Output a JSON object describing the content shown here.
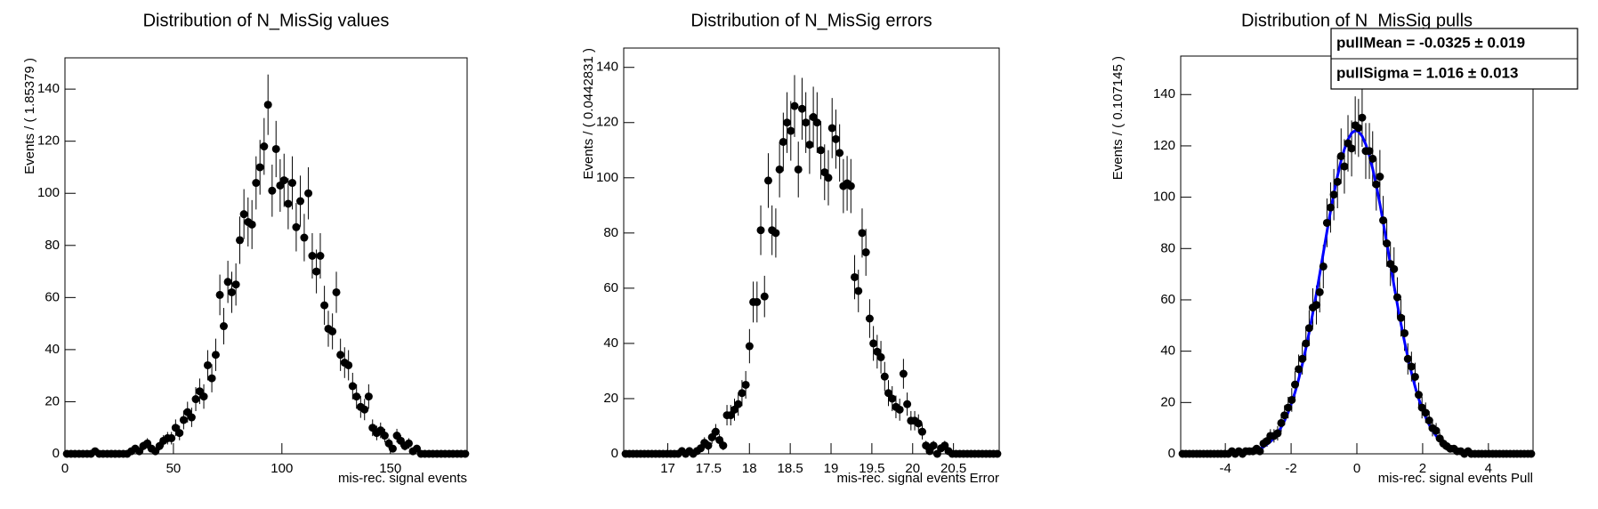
{
  "chart_data": [
    {
      "type": "errorbar",
      "title": "Distribution of N_MisSig values",
      "x_label": "mis-rec. signal events",
      "y_label": "Events / ( 1.85379 )",
      "color": "#000000",
      "xlim": [
        0,
        185.379
      ],
      "xticks": [
        0,
        50,
        100,
        150
      ],
      "ylim": [
        0,
        152
      ],
      "yticks": [
        0,
        20,
        40,
        60,
        80,
        100,
        120,
        140
      ],
      "x": [
        0.9,
        2.8,
        4.6,
        6.5,
        8.3,
        10.2,
        12.0,
        13.9,
        15.8,
        17.6,
        19.5,
        21.3,
        23.2,
        25.0,
        26.9,
        28.7,
        30.6,
        32.4,
        34.3,
        36.1,
        38.0,
        39.9,
        41.7,
        43.6,
        45.4,
        47.3,
        49.1,
        51.0,
        52.8,
        54.7,
        56.5,
        58.4,
        60.3,
        62.1,
        64.0,
        65.8,
        67.7,
        69.5,
        71.4,
        73.2,
        75.1,
        76.9,
        78.8,
        80.6,
        82.5,
        84.4,
        86.2,
        88.1,
        89.9,
        91.8,
        93.6,
        95.5,
        97.3,
        99.2,
        101.0,
        102.9,
        104.8,
        106.6,
        108.5,
        110.3,
        112.2,
        114.0,
        115.9,
        117.7,
        119.6,
        121.4,
        123.3,
        125.1,
        127.0,
        128.9,
        130.7,
        132.6,
        134.4,
        136.3,
        138.1,
        140.0,
        141.8,
        143.7,
        145.5,
        147.4,
        149.3,
        151.1,
        153.0,
        154.8,
        156.7,
        158.5,
        160.4,
        162.2,
        164.1,
        165.9,
        167.8,
        169.6,
        171.5,
        173.4,
        175.2,
        177.1,
        178.9,
        180.8,
        182.6,
        184.5
      ],
      "values": [
        0,
        0,
        0,
        0,
        0,
        0,
        0,
        1,
        0,
        0,
        0,
        0,
        0,
        0,
        0,
        0,
        1,
        2,
        1,
        3,
        4,
        2,
        1,
        3,
        5,
        6,
        6,
        10,
        8,
        13,
        16,
        14,
        21,
        24,
        22,
        34,
        29,
        38,
        61,
        49,
        66,
        62,
        65,
        82,
        92,
        89,
        88,
        104,
        110,
        118,
        134,
        101,
        117,
        103,
        105,
        96,
        104,
        87,
        97,
        83,
        100,
        76,
        70,
        76,
        57,
        48,
        47,
        62,
        38,
        35,
        34,
        26,
        22,
        18,
        17,
        22,
        10,
        8,
        9,
        7,
        4,
        2,
        7,
        5,
        3,
        4,
        1,
        2,
        0,
        0,
        0,
        0,
        0,
        0,
        0,
        0,
        0,
        0,
        0,
        0
      ],
      "errors": [
        0,
        0,
        0,
        0,
        0,
        0,
        0,
        1,
        0,
        0,
        0,
        0,
        0,
        0,
        0,
        0,
        1,
        1.4,
        1,
        1.7,
        2,
        1.4,
        1,
        1.7,
        2.2,
        2.4,
        2.4,
        3.2,
        2.8,
        3.6,
        4,
        3.7,
        4.6,
        4.9,
        4.7,
        5.8,
        5.4,
        6.2,
        7.8,
        7,
        8.1,
        7.9,
        8.1,
        9.1,
        9.6,
        9.4,
        9.4,
        10.2,
        10.5,
        10.9,
        11.6,
        10,
        10.8,
        10.1,
        10.2,
        9.8,
        10.2,
        9.3,
        9.8,
        9.1,
        10,
        8.7,
        8.4,
        8.7,
        7.5,
        6.9,
        6.9,
        7.9,
        6.2,
        5.9,
        5.8,
        5.1,
        4.7,
        4.2,
        4.1,
        4.7,
        3.2,
        2.8,
        3,
        2.6,
        2,
        1.4,
        2.6,
        2.2,
        1.7,
        2,
        1,
        1.4,
        0,
        0,
        0,
        0,
        0,
        0,
        0,
        0,
        0,
        0,
        0,
        0
      ]
    },
    {
      "type": "errorbar",
      "title": "Distribution of N_MisSig errors",
      "x_label": "mis-rec. signal events Error",
      "y_label": "Events / ( 0.0442831 )",
      "color": "#000000",
      "xlim": [
        16.46,
        21.06
      ],
      "xticks": [
        17,
        17.5,
        18,
        18.5,
        19,
        19.5,
        20,
        20.5
      ],
      "ylim": [
        0,
        147
      ],
      "yticks": [
        0,
        20,
        40,
        60,
        80,
        100,
        120,
        140
      ],
      "x": [
        16.483,
        16.529,
        16.575,
        16.621,
        16.667,
        16.713,
        16.759,
        16.805,
        16.851,
        16.897,
        16.943,
        16.989,
        17.035,
        17.081,
        17.127,
        17.173,
        17.219,
        17.265,
        17.311,
        17.357,
        17.403,
        17.449,
        17.495,
        17.541,
        17.587,
        17.633,
        17.679,
        17.725,
        17.771,
        17.817,
        17.863,
        17.909,
        17.955,
        18.001,
        18.047,
        18.093,
        18.139,
        18.185,
        18.231,
        18.277,
        18.323,
        18.369,
        18.415,
        18.461,
        18.507,
        18.553,
        18.599,
        18.645,
        18.691,
        18.737,
        18.783,
        18.829,
        18.875,
        18.921,
        18.967,
        19.013,
        19.059,
        19.105,
        19.151,
        19.197,
        19.243,
        19.289,
        19.335,
        19.381,
        19.427,
        19.473,
        19.519,
        19.565,
        19.611,
        19.657,
        19.703,
        19.749,
        19.795,
        19.841,
        19.887,
        19.933,
        19.979,
        20.025,
        20.071,
        20.117,
        20.163,
        20.209,
        20.255,
        20.301,
        20.347,
        20.393,
        20.439,
        20.485,
        20.531,
        20.577,
        20.623,
        20.669,
        20.715,
        20.761,
        20.807,
        20.853,
        20.899,
        20.945,
        20.991,
        21.037
      ],
      "values": [
        0,
        0,
        0,
        0,
        0,
        0,
        0,
        0,
        0,
        0,
        0,
        0,
        0,
        0,
        0,
        1,
        0,
        1,
        0,
        1,
        2,
        4,
        3,
        6,
        8,
        5,
        3,
        14,
        14,
        16,
        18,
        22,
        25,
        39,
        55,
        55,
        81,
        57,
        99,
        81,
        80,
        103,
        113,
        120,
        117,
        126,
        103,
        125,
        120,
        112,
        122,
        120,
        110,
        102,
        100,
        118,
        114,
        109,
        97,
        98,
        97,
        64,
        59,
        80,
        73,
        49,
        40,
        37,
        35,
        28,
        22,
        20,
        17,
        16,
        29,
        18,
        12,
        12,
        11,
        8,
        3,
        1,
        3,
        0,
        2,
        3,
        1,
        0,
        0,
        0,
        0,
        0,
        0,
        0,
        0,
        0,
        0,
        0,
        0,
        0
      ],
      "errors": [
        0,
        0,
        0,
        0,
        0,
        0,
        0,
        0,
        0,
        0,
        0,
        0,
        0,
        0,
        0,
        1,
        0,
        1,
        0,
        1,
        1.4,
        2,
        1.7,
        2.4,
        2.8,
        2.2,
        1.7,
        3.7,
        3.7,
        4,
        4.2,
        4.7,
        5,
        6.2,
        7.4,
        7.4,
        9,
        7.5,
        9.9,
        9,
        8.9,
        10.1,
        10.6,
        11,
        10.8,
        11.2,
        10.1,
        11.2,
        11,
        10.6,
        11,
        11,
        10.5,
        10.1,
        10,
        10.9,
        10.7,
        10.4,
        9.8,
        9.9,
        9.8,
        8,
        7.7,
        8.9,
        8.5,
        7,
        6.3,
        6.1,
        5.9,
        5.3,
        4.7,
        4.5,
        4.1,
        4,
        5.4,
        4.2,
        3.5,
        3.5,
        3.3,
        2.8,
        1.7,
        1,
        1.7,
        0,
        1.4,
        1.7,
        1,
        0,
        0,
        0,
        0,
        0,
        0,
        0,
        0,
        0,
        0,
        0,
        0,
        0
      ]
    },
    {
      "type": "errorbar",
      "title": "Distribution of N_MisSig pulls",
      "x_label": "mis-rec. signal events Pull",
      "y_label": "Events / ( 0.107145 )",
      "color": "#000000",
      "xlim": [
        -5.357,
        5.357
      ],
      "xticks": [
        -4,
        -2,
        0,
        2,
        4
      ],
      "ylim": [
        0,
        155
      ],
      "yticks": [
        0,
        20,
        40,
        60,
        80,
        100,
        120,
        140
      ],
      "stats": [
        "pullMean = -0.0325 ± 0.019",
        "pullSigma =  1.016 ± 0.013"
      ],
      "x": [
        -5.3,
        -5.2,
        -5.09,
        -4.98,
        -4.87,
        -4.77,
        -4.66,
        -4.55,
        -4.45,
        -4.34,
        -4.23,
        -4.13,
        -4.02,
        -3.91,
        -3.8,
        -3.7,
        -3.59,
        -3.48,
        -3.38,
        -3.27,
        -3.16,
        -3.05,
        -2.95,
        -2.84,
        -2.73,
        -2.63,
        -2.52,
        -2.41,
        -2.3,
        -2.2,
        -2.09,
        -1.98,
        -1.88,
        -1.77,
        -1.66,
        -1.55,
        -1.45,
        -1.34,
        -1.23,
        -1.13,
        -1.02,
        -0.91,
        -0.8,
        -0.7,
        -0.59,
        -0.48,
        -0.38,
        -0.27,
        -0.16,
        -0.05,
        0.05,
        0.16,
        0.27,
        0.38,
        0.48,
        0.59,
        0.7,
        0.8,
        0.91,
        1.02,
        1.13,
        1.23,
        1.34,
        1.45,
        1.55,
        1.66,
        1.77,
        1.88,
        1.98,
        2.09,
        2.2,
        2.3,
        2.41,
        2.52,
        2.63,
        2.73,
        2.84,
        2.95,
        3.05,
        3.16,
        3.27,
        3.38,
        3.48,
        3.59,
        3.7,
        3.8,
        3.91,
        4.02,
        4.13,
        4.23,
        4.34,
        4.45,
        4.55,
        4.66,
        4.77,
        4.87,
        4.98,
        5.09,
        5.2,
        5.3
      ],
      "values": [
        0,
        0,
        0,
        0,
        0,
        0,
        0,
        0,
        0,
        0,
        0,
        0,
        0,
        0,
        1,
        0,
        1,
        0,
        1,
        1,
        1,
        2,
        1,
        4,
        5,
        7,
        7,
        8,
        12,
        15,
        18,
        21,
        27,
        33,
        37,
        43,
        49,
        57,
        58,
        63,
        73,
        90,
        96,
        101,
        106,
        116,
        112,
        121,
        119,
        128,
        127,
        131,
        118,
        118,
        115,
        105,
        108,
        91,
        82,
        74,
        72,
        61,
        53,
        47,
        37,
        34,
        30,
        23,
        18,
        16,
        13,
        10,
        9,
        6,
        4,
        3,
        2,
        2,
        1,
        1,
        0,
        1,
        0,
        0,
        0,
        0,
        0,
        0,
        0,
        0,
        0,
        0,
        0,
        0,
        0,
        0,
        0,
        0,
        0,
        0
      ],
      "errors": [
        0,
        0,
        0,
        0,
        0,
        0,
        0,
        0,
        0,
        0,
        0,
        0,
        0,
        0,
        1,
        0,
        1,
        0,
        1,
        1,
        1,
        1.4,
        1,
        2,
        2.2,
        2.6,
        2.6,
        2.8,
        3.5,
        3.9,
        4.2,
        4.6,
        5.2,
        5.7,
        6.1,
        6.6,
        7,
        7.5,
        7.6,
        7.9,
        8.5,
        9.5,
        9.8,
        10,
        10.3,
        10.8,
        10.6,
        11,
        10.9,
        11.3,
        11.3,
        11.4,
        10.9,
        10.9,
        10.7,
        10.2,
        10.4,
        9.5,
        9.1,
        8.6,
        8.5,
        7.8,
        7.3,
        6.9,
        6.1,
        5.8,
        5.5,
        4.8,
        4.2,
        4,
        3.6,
        3.2,
        3,
        2.4,
        2,
        1.7,
        1.4,
        1.4,
        1,
        1,
        0,
        1,
        0,
        0,
        0,
        0,
        0,
        0,
        0,
        0,
        0,
        0,
        0,
        0,
        0,
        0,
        0,
        0,
        0,
        0
      ],
      "fit": {
        "color": "#0000ff",
        "values": [
          0,
          0,
          0,
          0,
          0,
          0,
          0,
          0,
          0,
          0,
          0,
          0,
          0,
          0.1,
          0.1,
          0.2,
          0.3,
          0.4,
          0.5,
          0.8,
          1.1,
          1.5,
          2.0,
          2.7,
          3.7,
          4.7,
          6.2,
          8.1,
          10.4,
          12.9,
          16.1,
          20.0,
          24.0,
          29.1,
          34.8,
          41.1,
          47.4,
          54.9,
          62.6,
          70.0,
          78.3,
          86.6,
          94.6,
          101.4,
          108.2,
          114.2,
          118.7,
          122.5,
          125.0,
          126.0,
          125.6,
          123.8,
          120.6,
          116.2,
          111.1,
          104.6,
          97.4,
          90.2,
          82.1,
          73.8,
          65.6,
          58.3,
          50.7,
          43.6,
          37.6,
          31.6,
          26.2,
          21.5,
          17.8,
          14.3,
          11.3,
          9.1,
          7.0,
          5.4,
          4.1,
          3.1,
          2.3,
          1.7,
          1.3,
          0.9,
          0.6,
          0.4,
          0.3,
          0.2,
          0.1,
          0.1,
          0.1,
          0,
          0,
          0,
          0,
          0,
          0,
          0,
          0,
          0,
          0,
          0,
          0,
          0
        ]
      }
    }
  ]
}
